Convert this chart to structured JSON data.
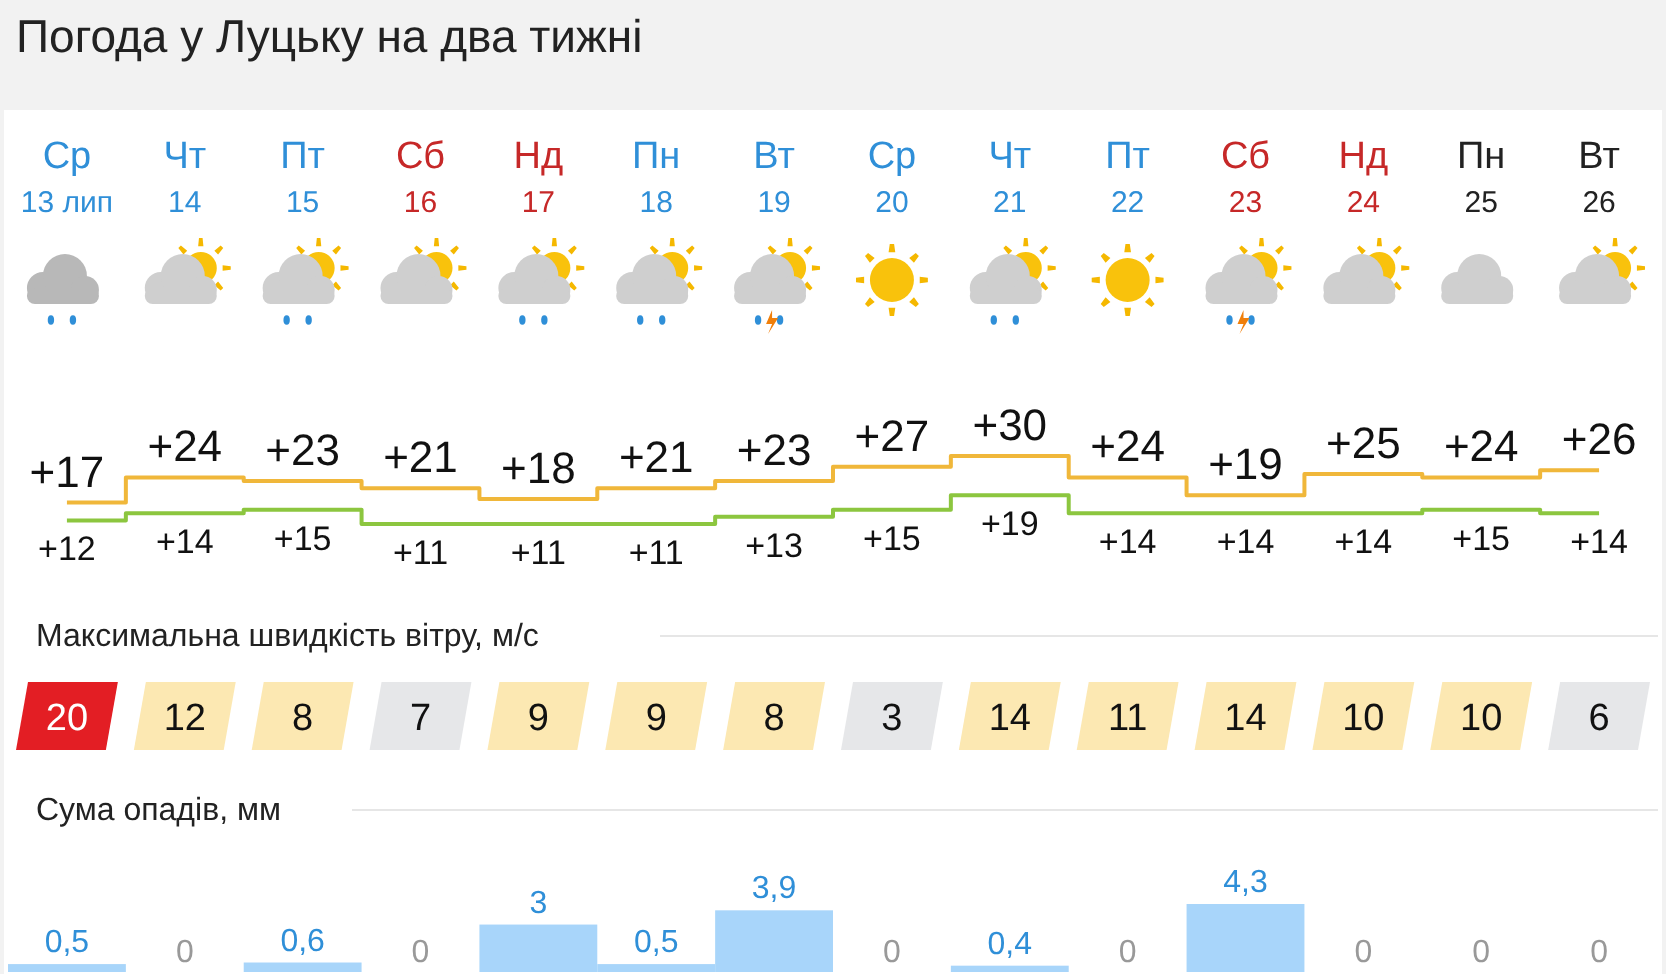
{
  "chart_data": [
    {
      "type": "step",
      "title": "Погода у Луцьку на два тижні",
      "categories": [
        "Ср 13 лип",
        "Чт 14",
        "Пт 15",
        "Сб 16",
        "Нд 17",
        "Пн 18",
        "Вт 19",
        "Ср 20",
        "Чт 21",
        "Пт 22",
        "Сб 23",
        "Нд 24",
        "Пн 25",
        "Вт 26"
      ],
      "series": [
        {
          "color": "#f0b73a",
          "values": [
            17,
            24,
            23,
            21,
            18,
            21,
            23,
            27,
            30,
            24,
            19,
            25,
            24,
            26
          ],
          "value_labels": [
            "+17",
            "+24",
            "+23",
            "+21",
            "+18",
            "+21",
            "+23",
            "+27",
            "+30",
            "+24",
            "+19",
            "+25",
            "+24",
            "+26"
          ]
        },
        {
          "color": "#8cc63f",
          "values": [
            12,
            14,
            15,
            11,
            11,
            11,
            13,
            15,
            19,
            14,
            14,
            14,
            15,
            14
          ],
          "value_labels": [
            "+12",
            "+14",
            "+15",
            "+11",
            "+11",
            "+11",
            "+13",
            "+15",
            "+19",
            "+14",
            "+14",
            "+14",
            "+15",
            "+14"
          ]
        }
      ]
    },
    {
      "type": "heatmap",
      "title": "Максимальна швидкість вітру, м/с",
      "categories": [
        null,
        null,
        null,
        null,
        null,
        null,
        null,
        null,
        null,
        null,
        null,
        null,
        null,
        null
      ],
      "y_categories": [
        null
      ],
      "cells": [
        [
          20,
          12,
          8,
          7,
          9,
          9,
          8,
          3,
          14,
          11,
          14,
          10,
          10,
          6
        ]
      ],
      "data_labels": true,
      "colors": [
        "#e31e24",
        "#fce8b2",
        "#fce8b2",
        "#e6e7e9",
        "#fce8b2",
        "#fce8b2",
        "#fce8b2",
        "#e6e7e9",
        "#fce8b2",
        "#fce8b2",
        "#fce8b2",
        "#fce8b2",
        "#fce8b2",
        "#e6e7e9"
      ]
    },
    {
      "type": "bar",
      "title": "Сума опадів, мм",
      "categories": [
        null,
        null,
        null,
        null,
        null,
        null,
        null,
        null,
        null,
        null,
        null,
        null,
        null,
        null
      ],
      "values": [
        0.5,
        0,
        0.6,
        0,
        3,
        0.5,
        3.9,
        0,
        0.4,
        0,
        4.3,
        0,
        0,
        0
      ],
      "color": "#a8d5fa",
      "value_labels": [
        "0,5",
        "0",
        "0,6",
        "0",
        "3",
        "0,5",
        "3,9",
        "0",
        "0,4",
        "0",
        "4,3",
        "0",
        "0",
        "0"
      ]
    }
  ]
}
